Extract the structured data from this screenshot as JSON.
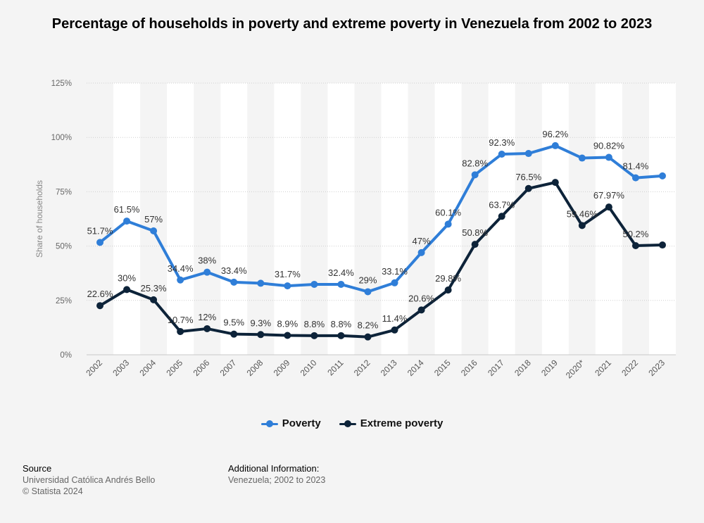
{
  "chart_data": {
    "type": "line",
    "title": "Percentage of households in poverty and extreme poverty in Venezuela from 2002 to 2023",
    "ylabel": "Share of households",
    "xlabel": "",
    "categories": [
      "2002",
      "2003",
      "2004",
      "2005",
      "2006",
      "2007",
      "2008",
      "2009",
      "2010",
      "2011",
      "2012",
      "2013",
      "2014",
      "2015",
      "2016",
      "2017",
      "2018",
      "2019",
      "2020*",
      "2021",
      "2022",
      "2023"
    ],
    "ylim": [
      0,
      125
    ],
    "yticks": [
      "0%",
      "25%",
      "50%",
      "75%",
      "100%",
      "125%"
    ],
    "grid": "horizontal dotted",
    "legend_position": "bottom",
    "series": [
      {
        "name": "Poverty",
        "color": "#2f7ed8",
        "values": [
          51.7,
          61.5,
          57,
          34.4,
          38,
          33.4,
          32.9,
          31.7,
          32.4,
          32.4,
          29,
          33.1,
          47,
          60.1,
          82.8,
          92.3,
          92.6,
          96.2,
          90.5,
          90.82,
          81.4,
          82.3
        ],
        "labels": [
          "51.7%",
          "61.5%",
          "57%",
          "34.4%",
          "38%",
          "33.4%",
          "",
          "31.7%",
          "",
          "32.4%",
          "29%",
          "33.1%",
          "47%",
          "60.1%",
          "82.8%",
          "92.3%",
          "",
          "96.2%",
          "",
          "90.82%",
          "81.4%",
          ""
        ]
      },
      {
        "name": "Extreme poverty",
        "color": "#0d2339",
        "values": [
          22.6,
          30,
          25.3,
          10.7,
          12,
          9.5,
          9.3,
          8.9,
          8.8,
          8.8,
          8.2,
          11.4,
          20.6,
          29.8,
          50.8,
          63.7,
          76.5,
          79.3,
          59.46,
          67.97,
          50.2,
          50.5
        ],
        "labels": [
          "22.6%",
          "30%",
          "25.3%",
          "10.7%",
          "12%",
          "9.5%",
          "9.3%",
          "8.9%",
          "8.8%",
          "8.8%",
          "8.2%",
          "11.4%",
          "20.6%",
          "29.8%",
          "50.8%",
          "63.7%",
          "76.5%",
          "",
          "59.46%",
          "67.97%",
          "50.2%",
          ""
        ]
      }
    ]
  },
  "legend": {
    "poverty": "Poverty",
    "extreme": "Extreme poverty"
  },
  "footer": {
    "source_heading": "Source",
    "source_line1": "Universidad Católica Andrés Bello",
    "source_line2": "© Statista 2024",
    "info_heading": "Additional Information:",
    "info_line1": "Venezuela; 2002 to 2023"
  }
}
